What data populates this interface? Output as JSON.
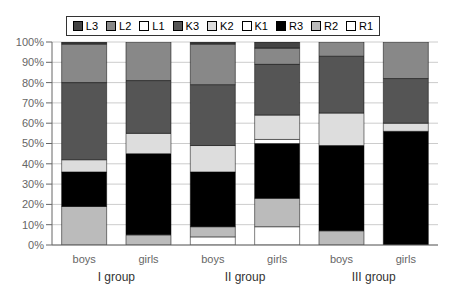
{
  "chart_data": {
    "type": "bar",
    "stacked": true,
    "categories": [
      "boys",
      "girls",
      "boys",
      "girls",
      "boys",
      "girls"
    ],
    "annotations": [
      "I group",
      "II group",
      "III group"
    ],
    "series": [
      {
        "name": "R1",
        "color": "#ffffff",
        "values": [
          0,
          0,
          4,
          9,
          0,
          0
        ]
      },
      {
        "name": "R2",
        "color": "#bbbbbb",
        "values": [
          19,
          5,
          5,
          14,
          7,
          0
        ]
      },
      {
        "name": "R3",
        "color": "#000000",
        "values": [
          17,
          40,
          27,
          27,
          42,
          56
        ]
      },
      {
        "name": "K1",
        "color": "#ffffff",
        "values": [
          0,
          0,
          0,
          2,
          0,
          0
        ]
      },
      {
        "name": "K2",
        "color": "#dddddd",
        "values": [
          6,
          10,
          13,
          12,
          16,
          4
        ]
      },
      {
        "name": "K3",
        "color": "#555555",
        "values": [
          38,
          26,
          30,
          25,
          28,
          22
        ]
      },
      {
        "name": "L1",
        "color": "#ffffff",
        "values": [
          0,
          0,
          0,
          0,
          0,
          0
        ]
      },
      {
        "name": "L2",
        "color": "#888888",
        "values": [
          19,
          19,
          20,
          8,
          7,
          18
        ]
      },
      {
        "name": "L3",
        "color": "#444444",
        "values": [
          1,
          0,
          1,
          3,
          0,
          0
        ]
      }
    ],
    "ylim": [
      0,
      100
    ],
    "yticks": [
      {
        "value": 0,
        "label": "0%"
      },
      {
        "value": 10,
        "label": "10%"
      },
      {
        "value": 20,
        "label": "20%"
      },
      {
        "value": 30,
        "label": "30%"
      },
      {
        "value": 40,
        "label": "40%"
      },
      {
        "value": 50,
        "label": "50%"
      },
      {
        "value": 60,
        "label": "60%"
      },
      {
        "value": 70,
        "label": "70%"
      },
      {
        "value": 80,
        "label": "80%"
      },
      {
        "value": 90,
        "label": "90%"
      },
      {
        "value": 100,
        "label": "100%"
      }
    ],
    "grid": true,
    "legend": "top"
  }
}
